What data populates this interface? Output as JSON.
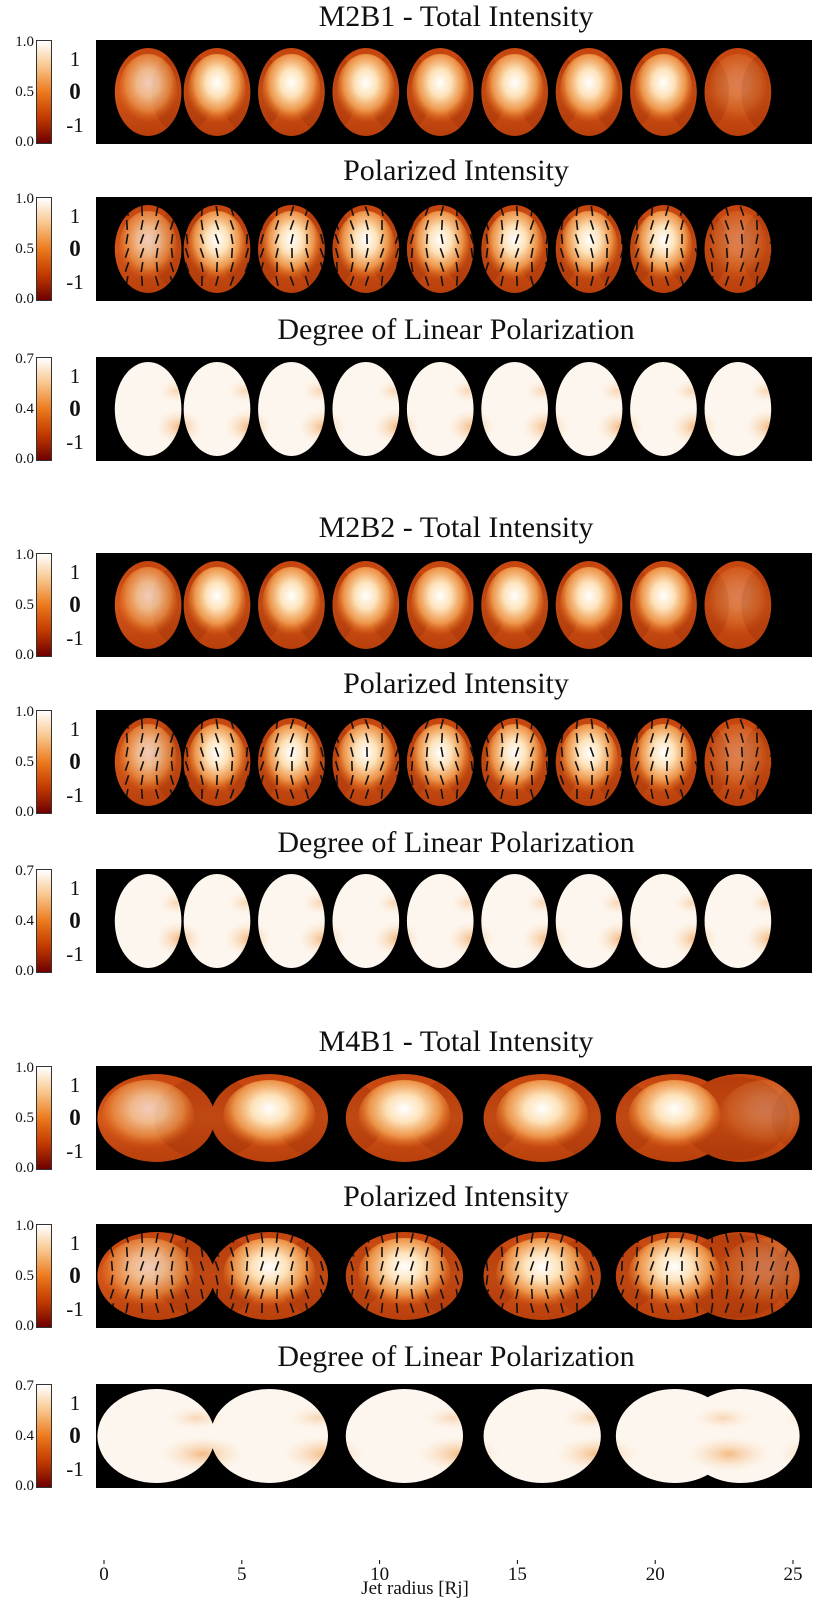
{
  "chart_data": {
    "type": "heatmap",
    "colormap": [
      "#6e0000",
      "#c23a00",
      "#ec7a1e",
      "#f8c68c",
      "#ffffff"
    ],
    "xlabel": "Jet radius [Rj]",
    "xlim": [
      0,
      25
    ],
    "xticks": [
      "0",
      "5",
      "10",
      "15",
      "20",
      "25"
    ],
    "models": [
      {
        "name": "M2B1",
        "knot_positions": [
          1.6,
          4.1,
          6.8,
          9.5,
          12.2,
          14.9,
          17.6,
          20.3,
          23.0
        ],
        "panels": [
          {
            "title": "M2B1 - Total Intensity",
            "kind": "total",
            "colorbar_ticks": [
              "1.0",
              "0.5",
              "0.0"
            ],
            "inner_labels": [
              "1",
              "0",
              "-1"
            ]
          },
          {
            "title": "Polarized Intensity",
            "kind": "polarized",
            "colorbar_ticks": [
              "1.0",
              "0.5",
              "0.0"
            ],
            "inner_labels": [
              "1",
              "0",
              "-1"
            ]
          },
          {
            "title": "Degree of Linear Polarization",
            "kind": "degree",
            "colorbar_ticks": [
              "0.7",
              "0.4",
              "0.0"
            ],
            "inner_labels": [
              "1",
              "0",
              "-1"
            ]
          }
        ]
      },
      {
        "name": "M2B2",
        "knot_positions": [
          1.6,
          4.1,
          6.8,
          9.5,
          12.2,
          14.9,
          17.6,
          20.3,
          23.0
        ],
        "panels": [
          {
            "title": "M2B2 - Total Intensity",
            "kind": "total",
            "colorbar_ticks": [
              "1.0",
              "0.5",
              "0.0"
            ],
            "inner_labels": [
              "1",
              "0",
              "-1"
            ]
          },
          {
            "title": "Polarized Intensity",
            "kind": "polarized",
            "colorbar_ticks": [
              "1.0",
              "0.5",
              "0.0"
            ],
            "inner_labels": [
              "1",
              "0",
              "-1"
            ]
          },
          {
            "title": "Degree of Linear Polarization",
            "kind": "degree",
            "colorbar_ticks": [
              "0.7",
              "0.4",
              "0.0"
            ],
            "inner_labels": [
              "1",
              "0",
              "-1"
            ]
          }
        ]
      },
      {
        "name": "M4B1",
        "knot_positions": [
          1.6,
          6.0,
          10.9,
          15.9,
          20.7,
          24.0
        ],
        "panels": [
          {
            "title": "M4B1 - Total Intensity",
            "kind": "total",
            "colorbar_ticks": [
              "1.0",
              "0.5",
              "0.0"
            ],
            "inner_labels": [
              "1",
              "0",
              "-1"
            ]
          },
          {
            "title": "Polarized Intensity",
            "kind": "polarized",
            "colorbar_ticks": [
              "1.0",
              "0.5",
              "0.0"
            ],
            "inner_labels": [
              "1",
              "0",
              "-1"
            ]
          },
          {
            "title": "Degree of Linear Polarization",
            "kind": "degree",
            "colorbar_ticks": [
              "0.7",
              "0.4",
              "0.0"
            ],
            "inner_labels": [
              "1",
              "0",
              "-1"
            ]
          }
        ]
      }
    ]
  }
}
